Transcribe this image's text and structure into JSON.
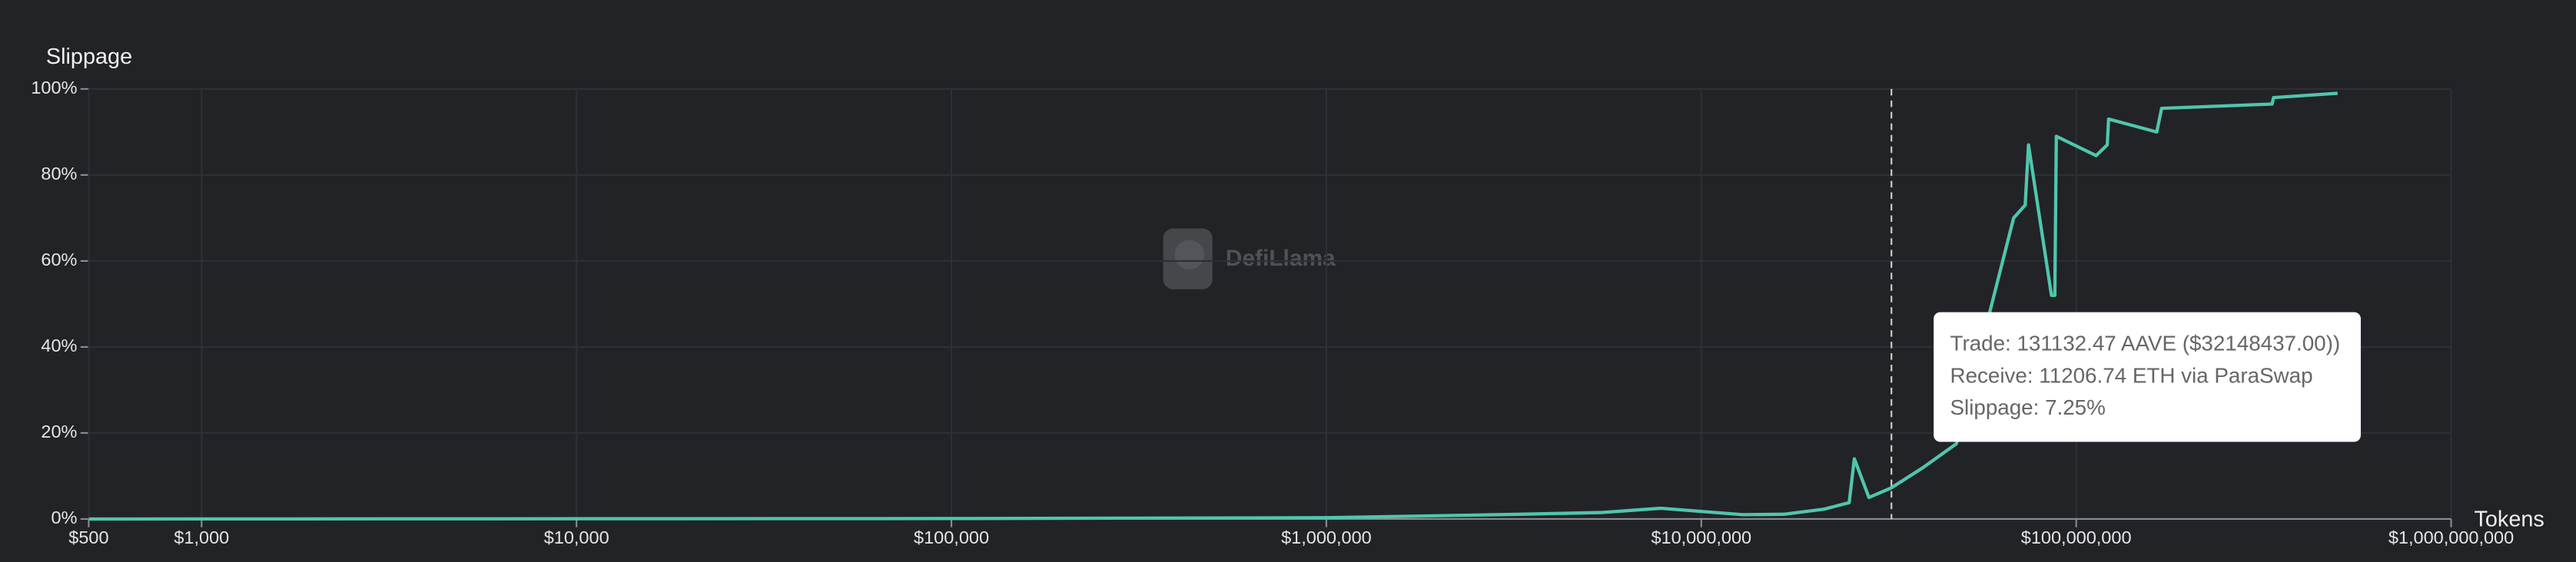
{
  "chart_data": {
    "type": "line",
    "y_label": "Slippage",
    "x_label": "Tokens",
    "log_x": true,
    "grid": true,
    "color": "#4fc6ad",
    "xlim": [
      500,
      1000000000
    ],
    "ylim": [
      0,
      100
    ],
    "xticks": [
      {
        "value": 500,
        "label": "$500"
      },
      {
        "value": 1000,
        "label": "$1,000"
      },
      {
        "value": 10000,
        "label": "$10,000"
      },
      {
        "value": 100000,
        "label": "$100,000"
      },
      {
        "value": 1000000,
        "label": "$1,000,000"
      },
      {
        "value": 10000000,
        "label": "$10,000,000"
      },
      {
        "value": 100000000,
        "label": "$100,000,000"
      },
      {
        "value": 1000000000,
        "label": "$1,000,000,000"
      }
    ],
    "yticks": [
      {
        "value": 0,
        "label": "0%"
      },
      {
        "value": 20,
        "label": "20%"
      },
      {
        "value": 40,
        "label": "40%"
      },
      {
        "value": 60,
        "label": "60%"
      },
      {
        "value": 80,
        "label": "80%"
      },
      {
        "value": 100,
        "label": "100%"
      }
    ],
    "x": [
      500,
      100000,
      1000000,
      3300000,
      5400000,
      7800000,
      12900000,
      16600000,
      21300000,
      24800000,
      25600000,
      28000000,
      32148437,
      39100000,
      47900000,
      68100000,
      73100000,
      74600000,
      85900000,
      87700000,
      88500000,
      113000000,
      121000000,
      122000000,
      164000000,
      169000000,
      333000000,
      336000000,
      498000000
    ],
    "values": [
      0,
      0.1,
      0.3,
      1.1,
      1.5,
      2.5,
      1,
      1.1,
      2.3,
      3.8,
      14,
      5,
      7.25,
      12,
      17.5,
      70,
      73,
      87,
      52,
      52,
      89,
      84.5,
      87,
      93,
      90,
      95.5,
      96.5,
      98,
      99
    ]
  },
  "tooltip": {
    "lines": [
      "Trade: 131132.47 AAVE ($32148437.00))",
      "Receive: 11206.74 ETH via ParaSwap",
      "Slippage: 7.25%"
    ]
  },
  "watermark": "DefiLlama"
}
